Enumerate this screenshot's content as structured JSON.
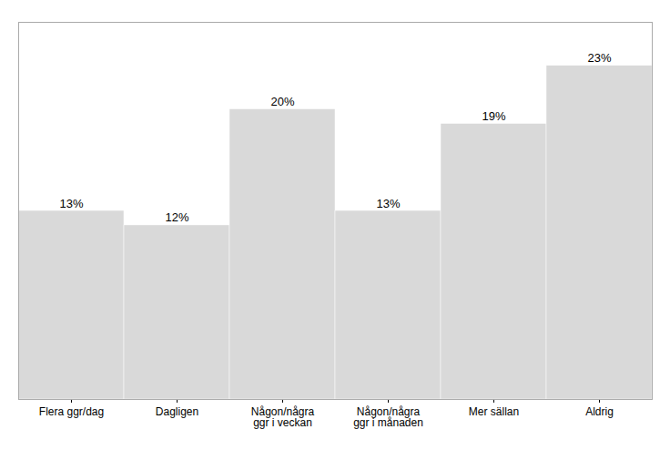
{
  "chart_data": {
    "type": "bar",
    "categories": [
      "Flera ggr/dag",
      "Dagligen",
      "Någon/några\nggr i veckan",
      "Någon/några\nggr i månaden",
      "Mer sällan",
      "Aldrig"
    ],
    "values": [
      13,
      12,
      20,
      13,
      19,
      23
    ],
    "value_labels": [
      "13%",
      "12%",
      "20%",
      "13%",
      "19%",
      "23%"
    ],
    "color": "#d9d9d9",
    "ylim": [
      0,
      26
    ],
    "data_labels": true,
    "tick_labels": "x",
    "grid": false
  }
}
